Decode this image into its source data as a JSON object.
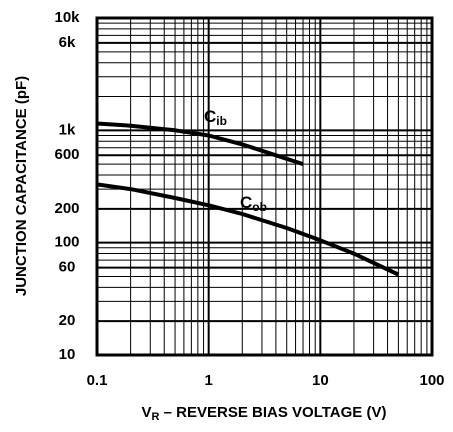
{
  "chart_data": {
    "type": "line",
    "ylabel": "JUNCTION CAPACITANCE (pF)",
    "xlabel": {
      "main": "V",
      "sub": "R",
      "rest": " – REVERSE BIAS VOLTAGE (V)"
    },
    "xlog": true,
    "ylog": true,
    "grid": true,
    "color": "#000000",
    "xlim": [
      0.1,
      100
    ],
    "ylim": [
      10,
      10000
    ],
    "xticks": [
      0.1,
      1,
      10,
      100
    ],
    "yticks": [
      10,
      20,
      60,
      100,
      200,
      600,
      {
        "value": 1000,
        "label": "1k"
      },
      {
        "value": 6000,
        "label": "6k"
      },
      {
        "value": 10000,
        "label": "10k"
      }
    ],
    "series": [
      {
        "label": {
          "main": "C",
          "sub": "ib"
        },
        "color": "#000000",
        "x": [
          0.1,
          0.2,
          0.5,
          1,
          2,
          4,
          7
        ],
        "values": [
          1150,
          1100,
          1000,
          900,
          750,
          600,
          500
        ]
      },
      {
        "label": {
          "main": "C",
          "sub": "ob"
        },
        "color": "#000000",
        "x": [
          0.1,
          0.2,
          0.5,
          1,
          2,
          5,
          10,
          20,
          50
        ],
        "values": [
          330,
          300,
          250,
          215,
          180,
          135,
          105,
          80,
          52
        ]
      }
    ]
  }
}
